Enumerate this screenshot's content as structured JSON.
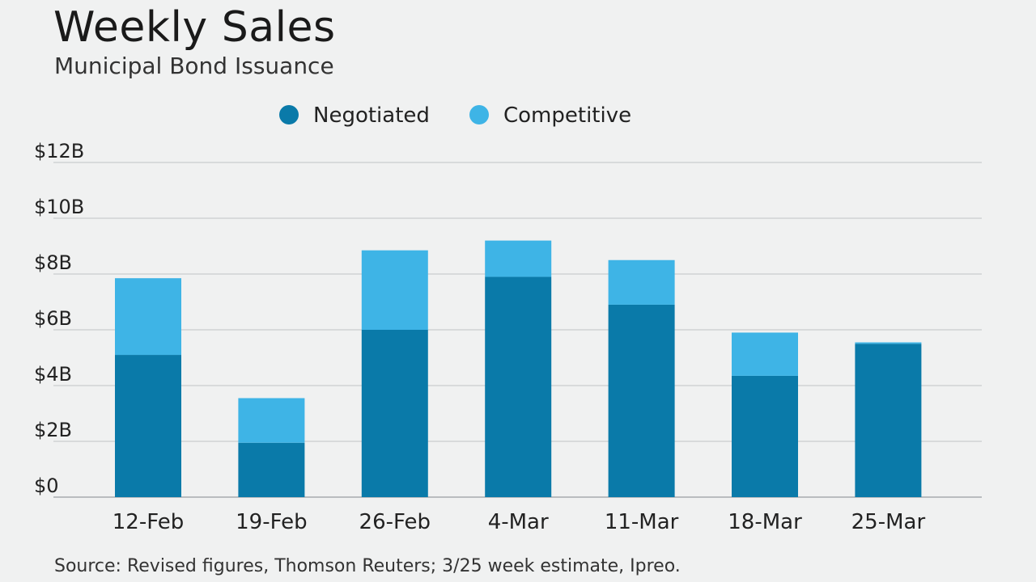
{
  "chart_data": {
    "type": "bar",
    "stacked": true,
    "title": "Weekly Sales",
    "subtitle": "Municipal Bond Issuance",
    "source": "Source: Revised figures, Thomson Reuters; 3/25 week estimate, Ipreo.",
    "categories": [
      "12-Feb",
      "19-Feb",
      "26-Feb",
      "4-Mar",
      "11-Mar",
      "18-Mar",
      "25-Mar"
    ],
    "series": [
      {
        "name": "Negotiated",
        "color": "#0a7aa9",
        "values": [
          5.1,
          1.95,
          6.0,
          7.9,
          6.9,
          4.35,
          5.5
        ]
      },
      {
        "name": "Competitive",
        "color": "#3eb4e6",
        "values": [
          2.75,
          1.6,
          2.85,
          1.3,
          1.6,
          1.55,
          0.05
        ]
      }
    ],
    "ylim": [
      0,
      12
    ],
    "yticks": [
      0,
      2,
      4,
      6,
      8,
      10,
      12
    ],
    "ytick_labels": [
      "$0",
      "$2B",
      "$4B",
      "$6B",
      "$8B",
      "$10B",
      "$12B"
    ],
    "grid": true,
    "legend": "top-center",
    "xlabel": "",
    "ylabel": ""
  }
}
